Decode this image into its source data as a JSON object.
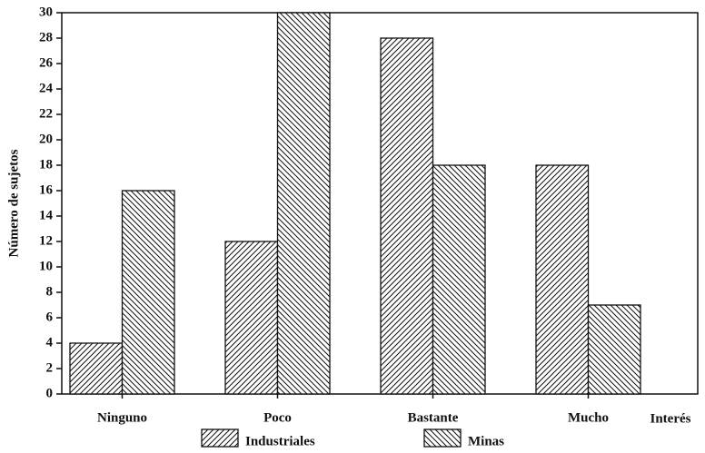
{
  "chart_data": {
    "type": "bar",
    "y_label": "Número de sujetos",
    "x_label": "Interés",
    "categories": [
      "Ninguno",
      "Poco",
      "Bastante",
      "Mucho"
    ],
    "series": [
      {
        "name": "Industriales",
        "color": "#111111",
        "hatch": "/",
        "values": [
          4,
          12,
          28,
          18
        ]
      },
      {
        "name": "Minas",
        "color": "#111111",
        "hatch": "\\",
        "values": [
          16,
          30,
          18,
          7
        ]
      }
    ],
    "ylim": [
      0,
      30
    ],
    "yticks": [
      0,
      2,
      4,
      6,
      8,
      10,
      12,
      14,
      16,
      18,
      20,
      22,
      24,
      26,
      28,
      30
    ],
    "grid": false
  }
}
